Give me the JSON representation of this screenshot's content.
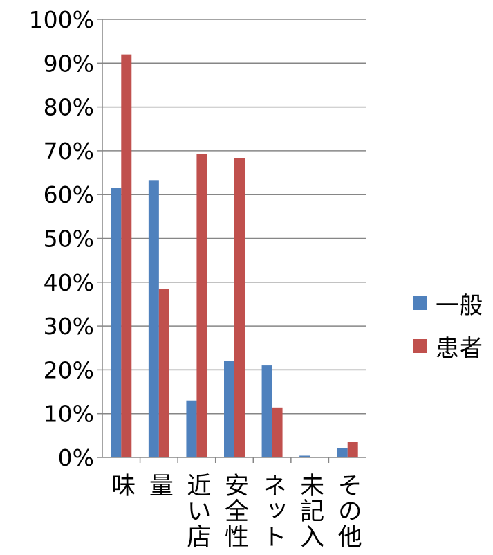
{
  "chart_data": {
    "type": "bar",
    "categories": [
      "味",
      "量",
      "近い店",
      "安全性",
      "ネット",
      "未記入",
      "その他"
    ],
    "series": [
      {
        "name": "一般",
        "color": "#4F81BD",
        "values": [
          61.5,
          63.3,
          13.0,
          22.0,
          21.0,
          0.4,
          2.2
        ]
      },
      {
        "name": "患者",
        "color": "#C0504D",
        "values": [
          92.0,
          38.5,
          69.3,
          68.4,
          11.4,
          0.0,
          3.5
        ]
      }
    ],
    "ylim": [
      0,
      100
    ],
    "yticks": [
      "0%",
      "10%",
      "20%",
      "30%",
      "40%",
      "50%",
      "60%",
      "70%",
      "80%",
      "90%",
      "100%"
    ],
    "grid": true,
    "legend_position": "right"
  }
}
